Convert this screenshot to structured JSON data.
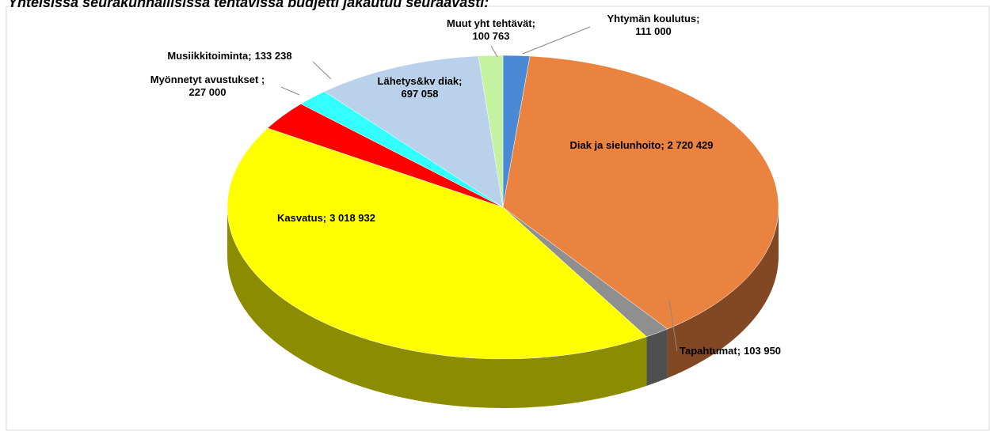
{
  "chart_data": {
    "type": "pie",
    "title": "Yhteisissä seurakunnallisissa tehtävissä budjetti jakautuu seuraavasti:",
    "categories": [
      "Yhtymän koulutus;",
      "Diak ja sielunhoito;",
      "Tapahtumat;",
      "Kasvatus;",
      "Myönnetyt avustukset ;",
      "Musiikkitoiminta;",
      "Lähetys&kv diak;",
      "Muut yht tehtävät;"
    ],
    "values": [
      111000,
      2720429,
      103950,
      3018932,
      227000,
      133238,
      697058,
      100763
    ],
    "value_labels": [
      "111 000",
      "2 720 429",
      "103 950",
      "3 018 932",
      "227 000",
      "133 238",
      "697 058",
      "100 763"
    ],
    "colors": [
      "#4a8ad4",
      "#ea8340",
      "#8f8f8f",
      "#ffff00",
      "#ff0000",
      "#33ffff",
      "#b9d1ea",
      "#c4f2a0"
    ]
  }
}
